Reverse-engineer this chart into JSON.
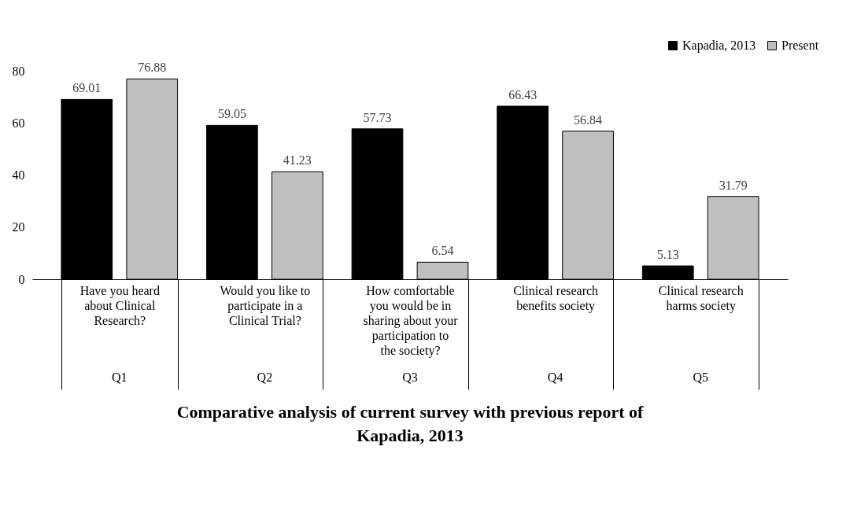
{
  "chart_data": {
    "type": "bar",
    "title": "Comparative analysis of current survey with previous report of Kapadia, 2013",
    "categories": [
      "Have you heard about Clinical Research?",
      "Would you like to participate in a Clinical Trial?",
      "How comfortable you would be in sharing about your participation to the society?",
      "Clinical research benefits society",
      "Clinical research harms society"
    ],
    "series": [
      {
        "name": "Kapadia, 2013",
        "color": "#000000",
        "values": [
          69.01,
          59.05,
          57.73,
          66.43,
          5.13
        ]
      },
      {
        "name": "Present",
        "color": "#bfbfbf",
        "values": [
          76.88,
          41.23,
          6.54,
          56.84,
          31.79
        ]
      }
    ],
    "annotations": [
      "Q1",
      "Q2",
      "Q3",
      "Q4",
      "Q5"
    ],
    "ylim": [
      0,
      80
    ],
    "yticks": [
      0,
      20,
      40,
      60,
      80
    ],
    "grid": false,
    "legend": "top right",
    "data_labels": true
  }
}
